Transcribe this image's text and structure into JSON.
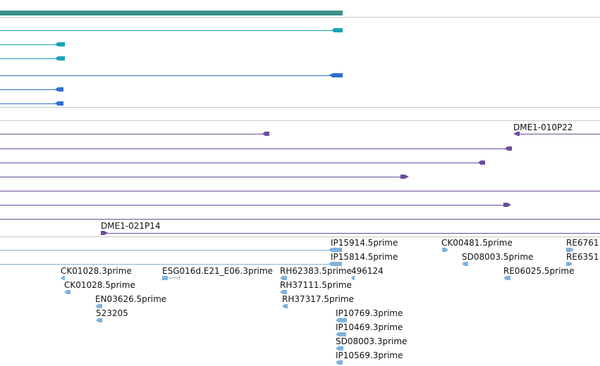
{
  "colors": {
    "gene_span": "#3a8f8a",
    "transcript_teal": "#1aa3b8",
    "transcript_blue": "#2f6fd1",
    "clone_purple": "#6b4c9a",
    "est": "#7fb2dd",
    "separator": "#c8c8c8"
  },
  "labels": {
    "clone_010p22": "DME1-010P22",
    "clone_021p14": "DME1-021P14",
    "est_ip15914": "IP15914.5prime",
    "est_ip15814": "IP15814.5prime",
    "est_ck00481": "CK00481.5prime",
    "est_re6761": "RE6761",
    "est_sd08003_a": "SD08003.5prime",
    "est_re6351": "RE6351",
    "est_ck01028_3": "CK01028.3prime",
    "est_esg016d": "ESG016d.E21_E06.3prime",
    "est_rh62383": "RH62383.5prime",
    "est_496124": "496124",
    "est_re06025": "RE06025.5prime",
    "est_ck01028_5": "CK01028.5prime",
    "est_rh37111": "RH37111.5prime",
    "est_en03626": "EN03626.5prime",
    "est_rh37317": "RH37317.5prime",
    "est_523205": "523205",
    "est_ip10769": "IP10769.3prime",
    "est_ip10469": "IP10469.3prime",
    "est_sd08003_b": "SD08003.3prime",
    "est_ip10569": "IP10569.3prime"
  }
}
